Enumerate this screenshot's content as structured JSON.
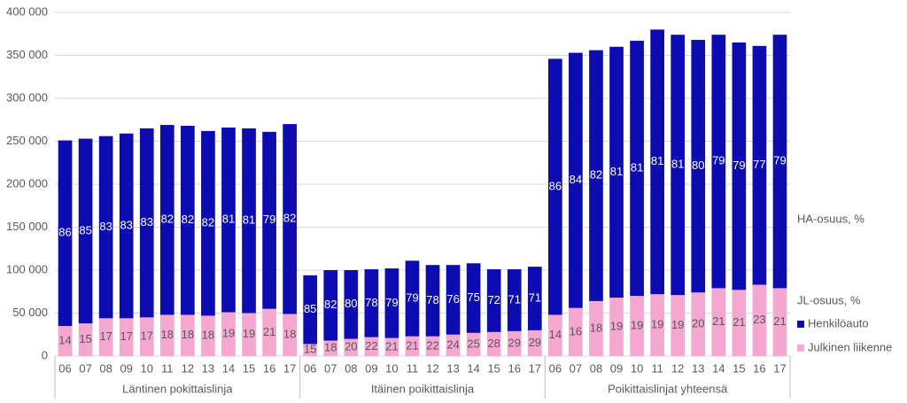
{
  "chart_data": {
    "type": "stacked_bar",
    "groups": [
      "Läntinen pokittaislinja",
      "Itäinen poikittaislinja",
      "Poikittaislinjat yhteensä"
    ],
    "categories": [
      "06",
      "07",
      "08",
      "09",
      "10",
      "11",
      "12",
      "13",
      "14",
      "15",
      "16",
      "17",
      "06",
      "07",
      "08",
      "09",
      "10",
      "11",
      "12",
      "13",
      "14",
      "15",
      "16",
      "17",
      "06",
      "07",
      "08",
      "09",
      "10",
      "11",
      "12",
      "13",
      "14",
      "15",
      "16",
      "17"
    ],
    "series": [
      {
        "name": "Henkilöauto",
        "color": "#0c0cb0",
        "values": [
          216000,
          215000,
          212000,
          215000,
          220000,
          221000,
          220000,
          215000,
          215000,
          215000,
          206000,
          221000,
          80000,
          82000,
          80000,
          79000,
          81000,
          88000,
          83000,
          81000,
          81000,
          73000,
          72000,
          74000,
          298000,
          297000,
          292000,
          292000,
          297000,
          308000,
          303000,
          294000,
          295000,
          288000,
          278000,
          295000
        ],
        "shares": [
          86,
          85,
          83,
          83,
          83,
          82,
          82,
          82,
          81,
          81,
          79,
          82,
          85,
          82,
          80,
          78,
          79,
          79,
          78,
          76,
          75,
          72,
          71,
          71,
          86,
          84,
          82,
          81,
          81,
          81,
          81,
          80,
          79,
          79,
          77,
          79
        ]
      },
      {
        "name": "Julkinen liikenne",
        "color": "#f4a7cf",
        "values": [
          35000,
          38000,
          44000,
          44000,
          45000,
          48000,
          48000,
          47000,
          51000,
          50000,
          55000,
          49000,
          14000,
          18000,
          20000,
          22000,
          21000,
          23000,
          23000,
          25000,
          27000,
          28000,
          29000,
          30000,
          48000,
          56000,
          64000,
          68000,
          70000,
          72000,
          71000,
          74000,
          79000,
          77000,
          83000,
          79000
        ],
        "shares": [
          14,
          15,
          17,
          17,
          17,
          18,
          18,
          18,
          19,
          19,
          21,
          18,
          15,
          18,
          20,
          22,
          21,
          21,
          22,
          24,
          25,
          28,
          29,
          29,
          14,
          16,
          18,
          19,
          19,
          19,
          19,
          20,
          21,
          21,
          23,
          21
        ]
      }
    ],
    "share_titles": [
      "HA-osuus, %",
      "JL-osuus, %"
    ],
    "ylim": [
      0,
      400000
    ],
    "yticks": [
      0,
      {
        "value": 50000,
        "label": "50 000"
      },
      {
        "value": 100000,
        "label": "100 000"
      },
      {
        "value": 150000,
        "label": "150 000"
      },
      {
        "value": 200000,
        "label": "200 000"
      },
      {
        "value": 250000,
        "label": "250 000"
      },
      {
        "value": 300000,
        "label": "300 000"
      },
      {
        "value": 350000,
        "label": "350 000"
      },
      {
        "value": 400000,
        "label": "400 000"
      }
    ],
    "grid": true
  }
}
